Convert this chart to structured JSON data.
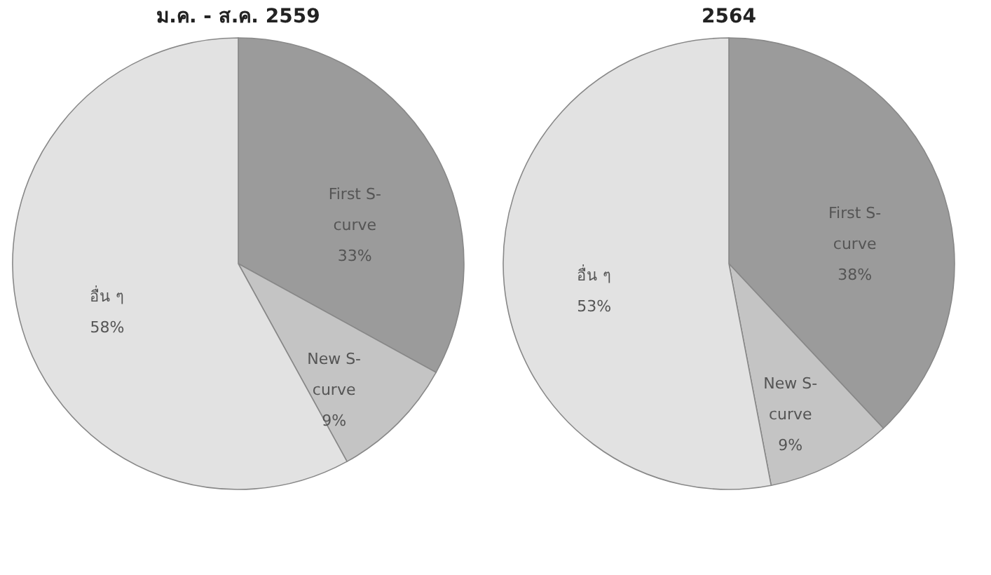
{
  "chart_data": [
    {
      "type": "pie",
      "title": "ม.ค. - ส.ค. 2559",
      "categories": [
        "First S-curve",
        "New S-curve",
        "อื่น ๆ"
      ],
      "values": [
        33,
        9,
        58
      ],
      "colors": [
        "#9b9b9b",
        "#c4c4c4",
        "#e2e2e2"
      ],
      "value_labels": [
        "33%",
        "9%",
        "58%"
      ],
      "legend": false
    },
    {
      "type": "pie",
      "title": "2564",
      "categories": [
        "First S-curve",
        "New S-curve",
        "อื่น ๆ"
      ],
      "values": [
        38,
        9,
        53
      ],
      "colors": [
        "#9b9b9b",
        "#c4c4c4",
        "#e2e2e2"
      ],
      "value_labels": [
        "38%",
        "9%",
        "53%"
      ],
      "legend": false
    }
  ]
}
